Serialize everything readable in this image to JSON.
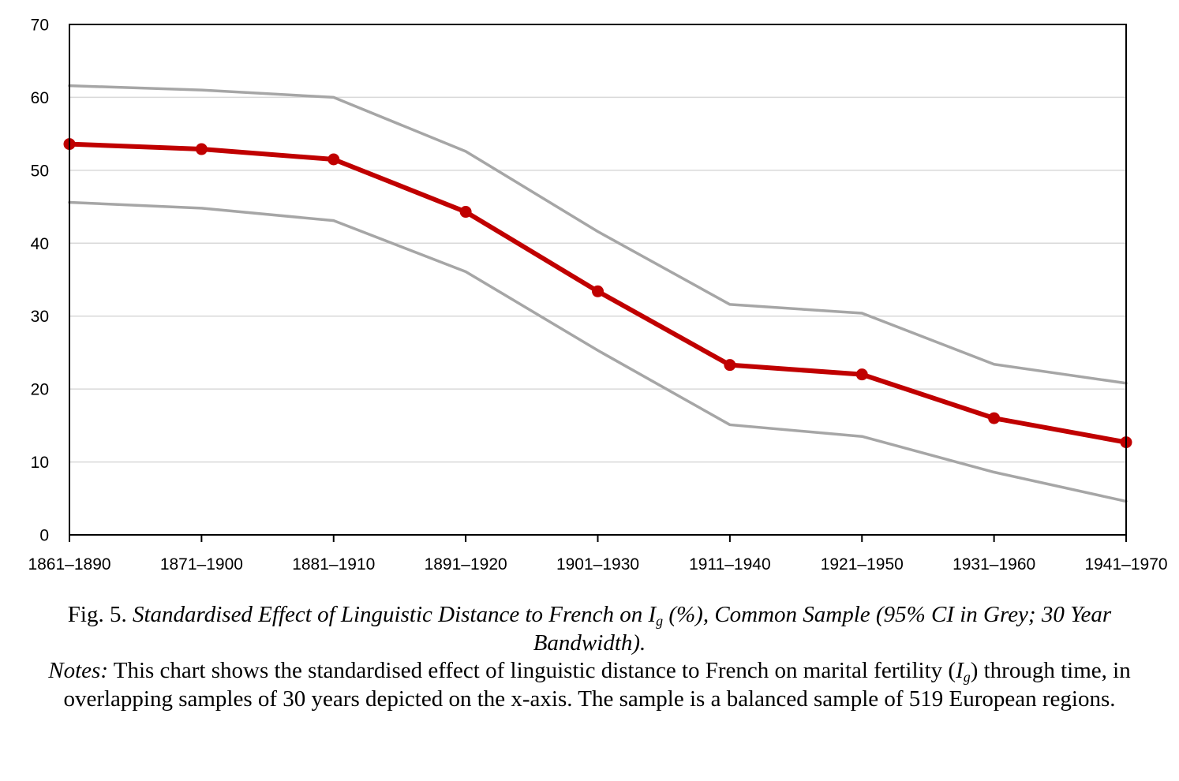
{
  "chart_data": {
    "type": "line",
    "categories": [
      "1861–1890",
      "1871–1900",
      "1881–1910",
      "1891–1920",
      "1901–1930",
      "1911–1940",
      "1921–1950",
      "1931–1960",
      "1941–1970"
    ],
    "ylim": [
      0,
      70
    ],
    "yticks": [
      0,
      10,
      20,
      30,
      40,
      50,
      60,
      70
    ],
    "grid": true,
    "legend": "none",
    "series": [
      {
        "role": "estimate",
        "color": "#C00000",
        "markers": true,
        "values": [
          53.6,
          52.9,
          51.5,
          44.3,
          33.4,
          23.3,
          22.0,
          16.0,
          12.7
        ]
      },
      {
        "role": "ci-upper",
        "color": "#A6A6A6",
        "markers": false,
        "values": [
          61.6,
          61.0,
          60.0,
          52.6,
          41.6,
          31.6,
          30.4,
          23.4,
          20.8
        ]
      },
      {
        "role": "ci-lower",
        "color": "#A6A6A6",
        "markers": false,
        "values": [
          45.6,
          44.8,
          43.1,
          36.1,
          25.3,
          15.1,
          13.5,
          8.6,
          4.6
        ]
      }
    ]
  },
  "caption": {
    "fig_label": "Fig. 5.",
    "title_part1": "Standardised Effect of Linguistic Distance to French on I",
    "title_sub": "g",
    "title_part2": " (%), Common Sample (95% CI in Grey; 30 Year Bandwidth).",
    "notes_label": "Notes:",
    "notes_part1": " This chart shows the standardised effect of linguistic distance to French on marital fertility (",
    "notes_i": "I",
    "notes_sub": "g",
    "notes_part2": ") through time, in overlapping samples of 30 years depicted on the x-axis. The sample is a balanced sample of 519 European regions."
  }
}
